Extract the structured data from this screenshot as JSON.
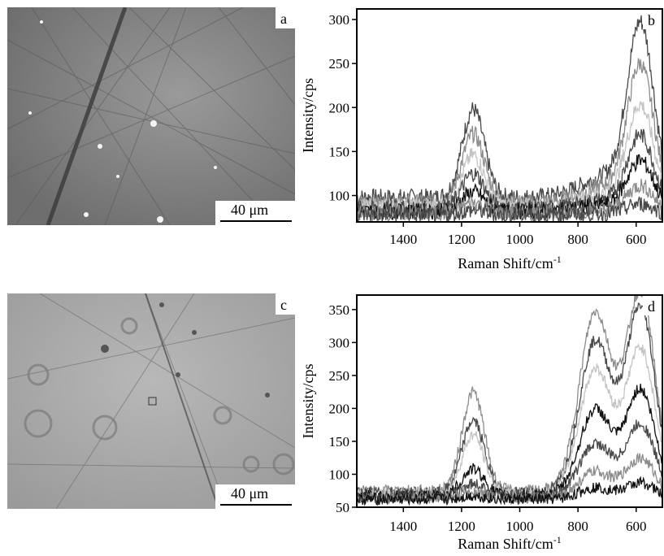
{
  "panels": {
    "a": {
      "letter": "a",
      "scale_bar": "40 μm"
    },
    "c": {
      "letter": "c",
      "scale_bar": "40 μm"
    }
  },
  "colors": {
    "dark": "#4a4a4a",
    "mid": "#8c8c8c",
    "light": "#c4c4c4",
    "black": "#111111"
  },
  "chart_data": [
    {
      "panel": "b",
      "type": "line",
      "xlabel": "Raman Shift/cm",
      "xlabel_sup": "-1",
      "ylabel": "Intensity/cps",
      "xlim": [
        1560,
        510
      ],
      "ylim": [
        70,
        312
      ],
      "xticks": [
        1400,
        1200,
        1000,
        800,
        600
      ],
      "yticks": [
        100,
        150,
        200,
        250,
        300
      ],
      "series_peaks": [
        {
          "base": 98,
          "p1": 100,
          "p2": 190,
          "color": "#4a4a4a"
        },
        {
          "base": 92,
          "p1": 78,
          "p2": 150,
          "color": "#8c8c8c"
        },
        {
          "base": 88,
          "p1": 58,
          "p2": 110,
          "color": "#c4c4c4"
        },
        {
          "base": 85,
          "p1": 40,
          "p2": 80,
          "color": "#4a4a4a"
        },
        {
          "base": 82,
          "p1": 22,
          "p2": 55,
          "color": "#111111"
        },
        {
          "base": 80,
          "p1": 12,
          "p2": 30,
          "color": "#8c8c8c"
        },
        {
          "base": 78,
          "p1": 5,
          "p2": 12,
          "color": "#4a4a4a"
        }
      ],
      "peak_positions": [
        1160,
        585
      ]
    },
    {
      "panel": "d",
      "type": "line",
      "xlabel": "Raman Shift/cm",
      "xlabel_sup": "-1",
      "ylabel": "Intensity/cps",
      "xlim": [
        1560,
        510
      ],
      "ylim": [
        50,
        372
      ],
      "xticks": [
        1400,
        1200,
        1000,
        800,
        600
      ],
      "yticks": [
        50,
        100,
        150,
        200,
        250,
        300,
        350
      ],
      "series_peaks": [
        {
          "base": 75,
          "p1": 150,
          "p2": 270,
          "p3": 300,
          "color": "#8c8c8c"
        },
        {
          "base": 72,
          "p1": 110,
          "p2": 230,
          "p3": 280,
          "color": "#4a4a4a"
        },
        {
          "base": 70,
          "p1": 90,
          "p2": 190,
          "p3": 220,
          "color": "#c4c4c4"
        },
        {
          "base": 68,
          "p1": 40,
          "p2": 130,
          "p3": 160,
          "color": "#111111"
        },
        {
          "base": 66,
          "p1": 20,
          "p2": 80,
          "p3": 110,
          "color": "#4a4a4a"
        },
        {
          "base": 64,
          "p1": 10,
          "p2": 40,
          "p3": 60,
          "color": "#8c8c8c"
        },
        {
          "base": 62,
          "p1": 5,
          "p2": 18,
          "p3": 25,
          "color": "#111111"
        }
      ],
      "peak_positions": [
        1160,
        740,
        585
      ]
    }
  ]
}
